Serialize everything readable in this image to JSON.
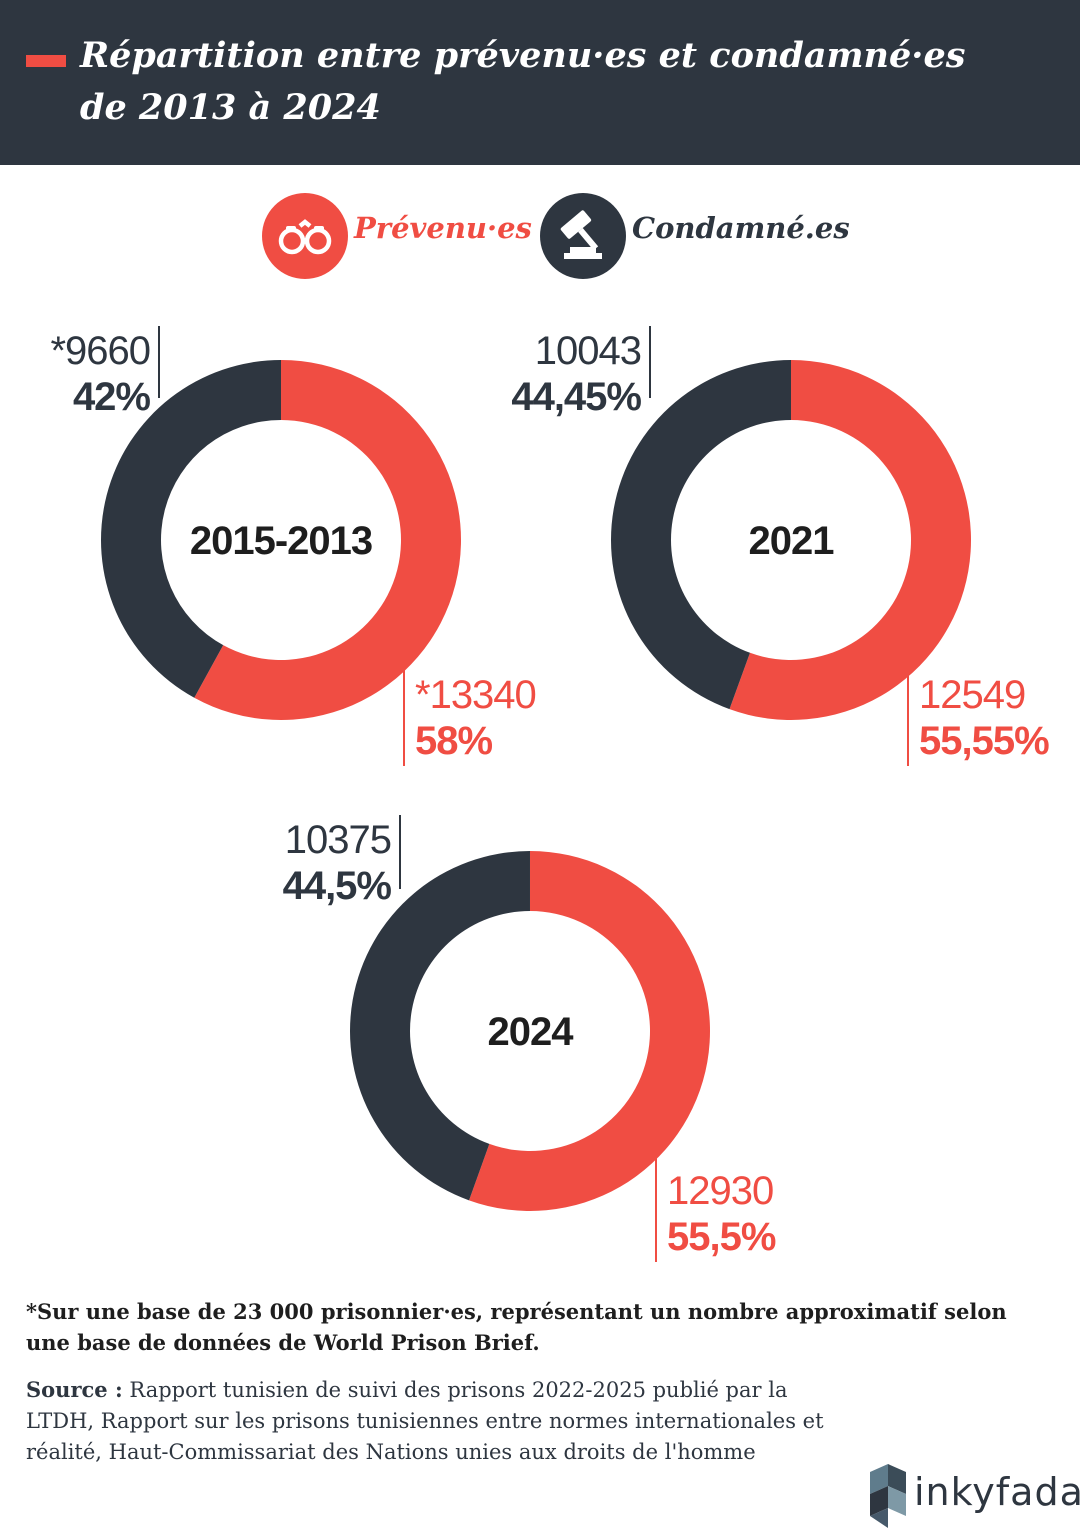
{
  "header": {
    "title_line1": "Répartition entre prévenu·es et condamné·es",
    "title_line2": "de 2013 à 2024"
  },
  "legend": {
    "prevenues": {
      "label": "Prévenu·es",
      "icon": "handcuffs-icon",
      "color": "#f04d43"
    },
    "condamnees": {
      "label": "Condamné.es",
      "icon": "gavel-icon",
      "color": "#2e3640"
    }
  },
  "chart_data": [
    {
      "type": "pie",
      "center_label": "2015-2013",
      "slices": [
        {
          "name": "Prévenu·es",
          "value": 13340,
          "value_label": "*13340",
          "percent": 58,
          "percent_label": "58%"
        },
        {
          "name": "Condamné.es",
          "value": 9660,
          "value_label": "*9660",
          "percent": 42,
          "percent_label": "42%"
        }
      ]
    },
    {
      "type": "pie",
      "center_label": "2021",
      "slices": [
        {
          "name": "Prévenu·es",
          "value": 12549,
          "value_label": "12549",
          "percent": 55.55,
          "percent_label": "55,55%"
        },
        {
          "name": "Condamné.es",
          "value": 10043,
          "value_label": "10043",
          "percent": 44.45,
          "percent_label": "44,45%"
        }
      ]
    },
    {
      "type": "pie",
      "center_label": "2024",
      "slices": [
        {
          "name": "Prévenu·es",
          "value": 12930,
          "value_label": "12930",
          "percent": 55.5,
          "percent_label": "55,5%"
        },
        {
          "name": "Condamné.es",
          "value": 10375,
          "value_label": "10375",
          "percent": 44.5,
          "percent_label": "44,5%"
        }
      ]
    }
  ],
  "footnote": "*Sur une base de 23 000 prisonnier·es, représentant un nombre approximatif selon une base de données de World Prison Brief.",
  "source": {
    "label": "Source :",
    "text": " Rapport tunisien de suivi des prisons 2022-2025 publié par la LTDH, Rapport sur les prisons tunisiennes entre normes internationales et réalité, Haut-Commissariat des Nations unies aux droits de l'homme"
  },
  "logo": {
    "text": "inkyfada"
  }
}
